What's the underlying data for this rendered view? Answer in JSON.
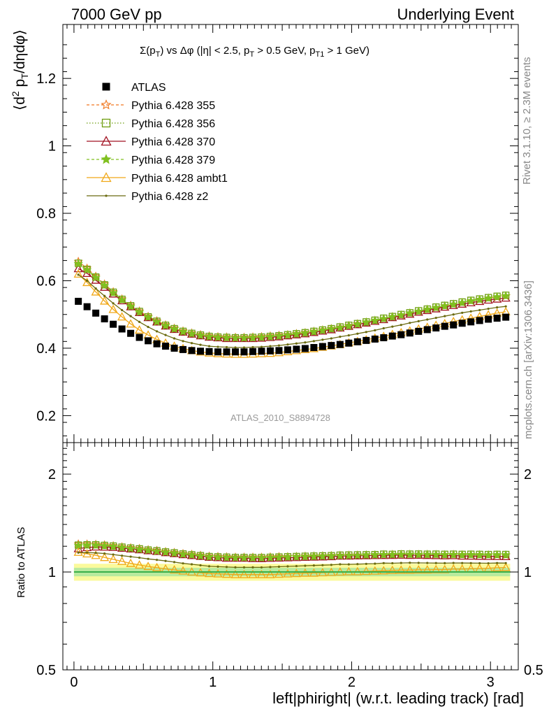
{
  "header": {
    "left": "7000 GeV pp",
    "right": "Underlying Event"
  },
  "side_text": {
    "rivet": "Rivet 3.1.10, ≥ 2.3M events",
    "mcplots": "mcplots.cern.ch [arXiv:1306.3436]"
  },
  "analysis_id": "ATLAS_2010_S8894728",
  "title_parts": {
    "sigma": "Σ(p",
    "sigma_sub": "T",
    "mid": ") vs Δφ (|η| < 2.5, p",
    "pt_sub": "T",
    "cut1": " > 0.5 GeV, p",
    "pt1_sub": "T1",
    "cut2": " > 1 GeV)"
  },
  "y_title_parts": {
    "open": "⟨d",
    "sup": "2",
    "p": " p",
    "sub": "T",
    "rest": "/dηdφ⟩"
  },
  "ratio_title": "Ratio to ATLAS",
  "x_title": "left|phiright| (w.r.t. leading track) [rad]",
  "chart_data": [
    {
      "type": "scatter",
      "title": "Σ(pT) vs Δφ (|η| < 2.5, pT > 0.5 GeV, pT1 > 1 GeV)",
      "xlabel": "left|phiright| (w.r.t. leading track) [rad]",
      "ylabel": "⟨d2 pT/dηdφ⟩",
      "xlim": [
        -0.08,
        3.2
      ],
      "ylim": [
        0.12,
        1.36
      ],
      "y_ticks": [
        0.2,
        0.4,
        0.6,
        0.8,
        1,
        1.2
      ],
      "y_tick_labels": [
        "0.2",
        "0.4",
        "0.6",
        "0.8",
        "1",
        "1.2"
      ],
      "legend_position": "top-left",
      "x_values": [
        0.0314,
        0.0942,
        0.1571,
        0.2199,
        0.2827,
        0.3456,
        0.4084,
        0.4712,
        0.5341,
        0.5969,
        0.6597,
        0.7226,
        0.7854,
        0.8482,
        0.9111,
        0.9739,
        1.0367,
        1.0996,
        1.1624,
        1.2252,
        1.2881,
        1.3509,
        1.4137,
        1.4765,
        1.5394,
        1.6022,
        1.665,
        1.7279,
        1.7907,
        1.8535,
        1.9164,
        1.9792,
        2.042,
        2.1049,
        2.1677,
        2.2305,
        2.2934,
        2.3562,
        2.419,
        2.4819,
        2.5447,
        2.6075,
        2.6704,
        2.7332,
        2.796,
        2.8588,
        2.9217,
        2.9845,
        3.0473,
        3.1102
      ],
      "series": [
        {
          "name": "ATLAS",
          "color": "#000000",
          "marker": "square-filled",
          "line": "none",
          "values": [
            0.539,
            0.523,
            0.504,
            0.487,
            0.471,
            0.457,
            0.444,
            0.432,
            0.422,
            0.413,
            0.406,
            0.4,
            0.396,
            0.393,
            0.391,
            0.39,
            0.389,
            0.389,
            0.389,
            0.389,
            0.39,
            0.391,
            0.392,
            0.393,
            0.395,
            0.397,
            0.399,
            0.402,
            0.405,
            0.408,
            0.411,
            0.415,
            0.419,
            0.423,
            0.427,
            0.431,
            0.436,
            0.44,
            0.445,
            0.45,
            0.455,
            0.46,
            0.465,
            0.469,
            0.474,
            0.478,
            0.482,
            0.486,
            0.489,
            0.492
          ]
        },
        {
          "name": "Pythia 6.428 355",
          "color": "#f07820",
          "marker": "star-open",
          "line": "dashed",
          "values": [
            0.657,
            0.637,
            0.613,
            0.59,
            0.567,
            0.546,
            0.527,
            0.51,
            0.494,
            0.481,
            0.469,
            0.459,
            0.451,
            0.445,
            0.44,
            0.436,
            0.434,
            0.433,
            0.432,
            0.432,
            0.433,
            0.434,
            0.436,
            0.438,
            0.44,
            0.443,
            0.446,
            0.45,
            0.454,
            0.458,
            0.462,
            0.467,
            0.472,
            0.477,
            0.482,
            0.487,
            0.493,
            0.498,
            0.504,
            0.509,
            0.515,
            0.52,
            0.525,
            0.53,
            0.535,
            0.54,
            0.544,
            0.548,
            0.551,
            0.554
          ]
        },
        {
          "name": "Pythia 6.428 356",
          "color": "#6e9e10",
          "marker": "square-open",
          "line": "dotted",
          "values": [
            0.652,
            0.634,
            0.611,
            0.588,
            0.566,
            0.545,
            0.526,
            0.509,
            0.493,
            0.48,
            0.468,
            0.458,
            0.45,
            0.444,
            0.439,
            0.435,
            0.433,
            0.432,
            0.431,
            0.431,
            0.432,
            0.433,
            0.435,
            0.437,
            0.44,
            0.443,
            0.446,
            0.45,
            0.454,
            0.458,
            0.463,
            0.468,
            0.473,
            0.478,
            0.483,
            0.489,
            0.494,
            0.5,
            0.505,
            0.511,
            0.516,
            0.522,
            0.527,
            0.532,
            0.537,
            0.542,
            0.546,
            0.55,
            0.554,
            0.557
          ]
        },
        {
          "name": "Pythia 6.428 370",
          "color": "#a01020",
          "marker": "triangle-open",
          "line": "solid",
          "values": [
            0.636,
            0.622,
            0.602,
            0.581,
            0.561,
            0.541,
            0.523,
            0.506,
            0.491,
            0.478,
            0.466,
            0.456,
            0.448,
            0.442,
            0.437,
            0.433,
            0.431,
            0.429,
            0.429,
            0.429,
            0.429,
            0.43,
            0.432,
            0.434,
            0.437,
            0.44,
            0.443,
            0.447,
            0.451,
            0.455,
            0.46,
            0.465,
            0.47,
            0.475,
            0.48,
            0.485,
            0.491,
            0.496,
            0.501,
            0.507,
            0.512,
            0.517,
            0.522,
            0.527,
            0.531,
            0.535,
            0.539,
            0.543,
            0.546,
            0.549
          ]
        },
        {
          "name": "Pythia 6.428 379",
          "color": "#80c020",
          "marker": "star-filled",
          "line": "dashed",
          "values": [
            0.65,
            0.632,
            0.609,
            0.586,
            0.564,
            0.543,
            0.524,
            0.507,
            0.492,
            0.478,
            0.467,
            0.457,
            0.449,
            0.443,
            0.438,
            0.434,
            0.432,
            0.431,
            0.43,
            0.43,
            0.431,
            0.432,
            0.434,
            0.436,
            0.439,
            0.442,
            0.445,
            0.449,
            0.453,
            0.457,
            0.461,
            0.466,
            0.471,
            0.477,
            0.482,
            0.487,
            0.493,
            0.498,
            0.504,
            0.509,
            0.515,
            0.52,
            0.525,
            0.53,
            0.535,
            0.54,
            0.544,
            0.548,
            0.552,
            0.555
          ]
        },
        {
          "name": "Pythia 6.428 ambt1",
          "color": "#f0a818",
          "marker": "triangle-open",
          "line": "solid",
          "values": [
            0.62,
            0.595,
            0.567,
            0.54,
            0.515,
            0.493,
            0.472,
            0.454,
            0.439,
            0.426,
            0.415,
            0.406,
            0.399,
            0.393,
            0.389,
            0.386,
            0.384,
            0.383,
            0.382,
            0.382,
            0.383,
            0.384,
            0.385,
            0.387,
            0.39,
            0.393,
            0.396,
            0.399,
            0.403,
            0.407,
            0.411,
            0.416,
            0.42,
            0.425,
            0.43,
            0.435,
            0.441,
            0.446,
            0.451,
            0.457,
            0.462,
            0.468,
            0.473,
            0.479,
            0.484,
            0.489,
            0.494,
            0.499,
            0.504,
            0.508
          ]
        },
        {
          "name": "Pythia 6.428 z2",
          "color": "#6b6b10",
          "marker": "dot",
          "line": "solid",
          "values": [
            0.618,
            0.6,
            0.577,
            0.555,
            0.533,
            0.513,
            0.495,
            0.478,
            0.463,
            0.45,
            0.439,
            0.429,
            0.421,
            0.415,
            0.41,
            0.406,
            0.404,
            0.403,
            0.402,
            0.402,
            0.403,
            0.404,
            0.406,
            0.408,
            0.411,
            0.414,
            0.417,
            0.421,
            0.425,
            0.429,
            0.434,
            0.438,
            0.443,
            0.448,
            0.453,
            0.459,
            0.464,
            0.469,
            0.475,
            0.48,
            0.485,
            0.49,
            0.495,
            0.5,
            0.505,
            0.509,
            0.513,
            0.517,
            0.521,
            0.524
          ]
        }
      ]
    },
    {
      "type": "scatter",
      "title": "",
      "xlabel": "left|phiright| (w.r.t. leading track) [rad]",
      "ylabel": "Ratio to ATLAS",
      "ylim": [
        0.5,
        2.5
      ],
      "y_scale": "log",
      "y_ticks": [
        0.5,
        1,
        2
      ],
      "y_tick_labels": [
        "0.5",
        "1",
        "2"
      ],
      "x_ticks": [
        0,
        1,
        2,
        3
      ],
      "x_tick_labels": [
        "0",
        "1",
        "2",
        "3"
      ],
      "reference_band": {
        "inner": [
          0.97,
          1.03
        ],
        "outer": [
          0.94,
          1.06
        ],
        "inner_color": "#b9ea9e",
        "outer_color": "#fbfa9c",
        "line_color": "#3ab04a"
      },
      "note": "ratios equal each MC series divided by ATLAS"
    }
  ]
}
